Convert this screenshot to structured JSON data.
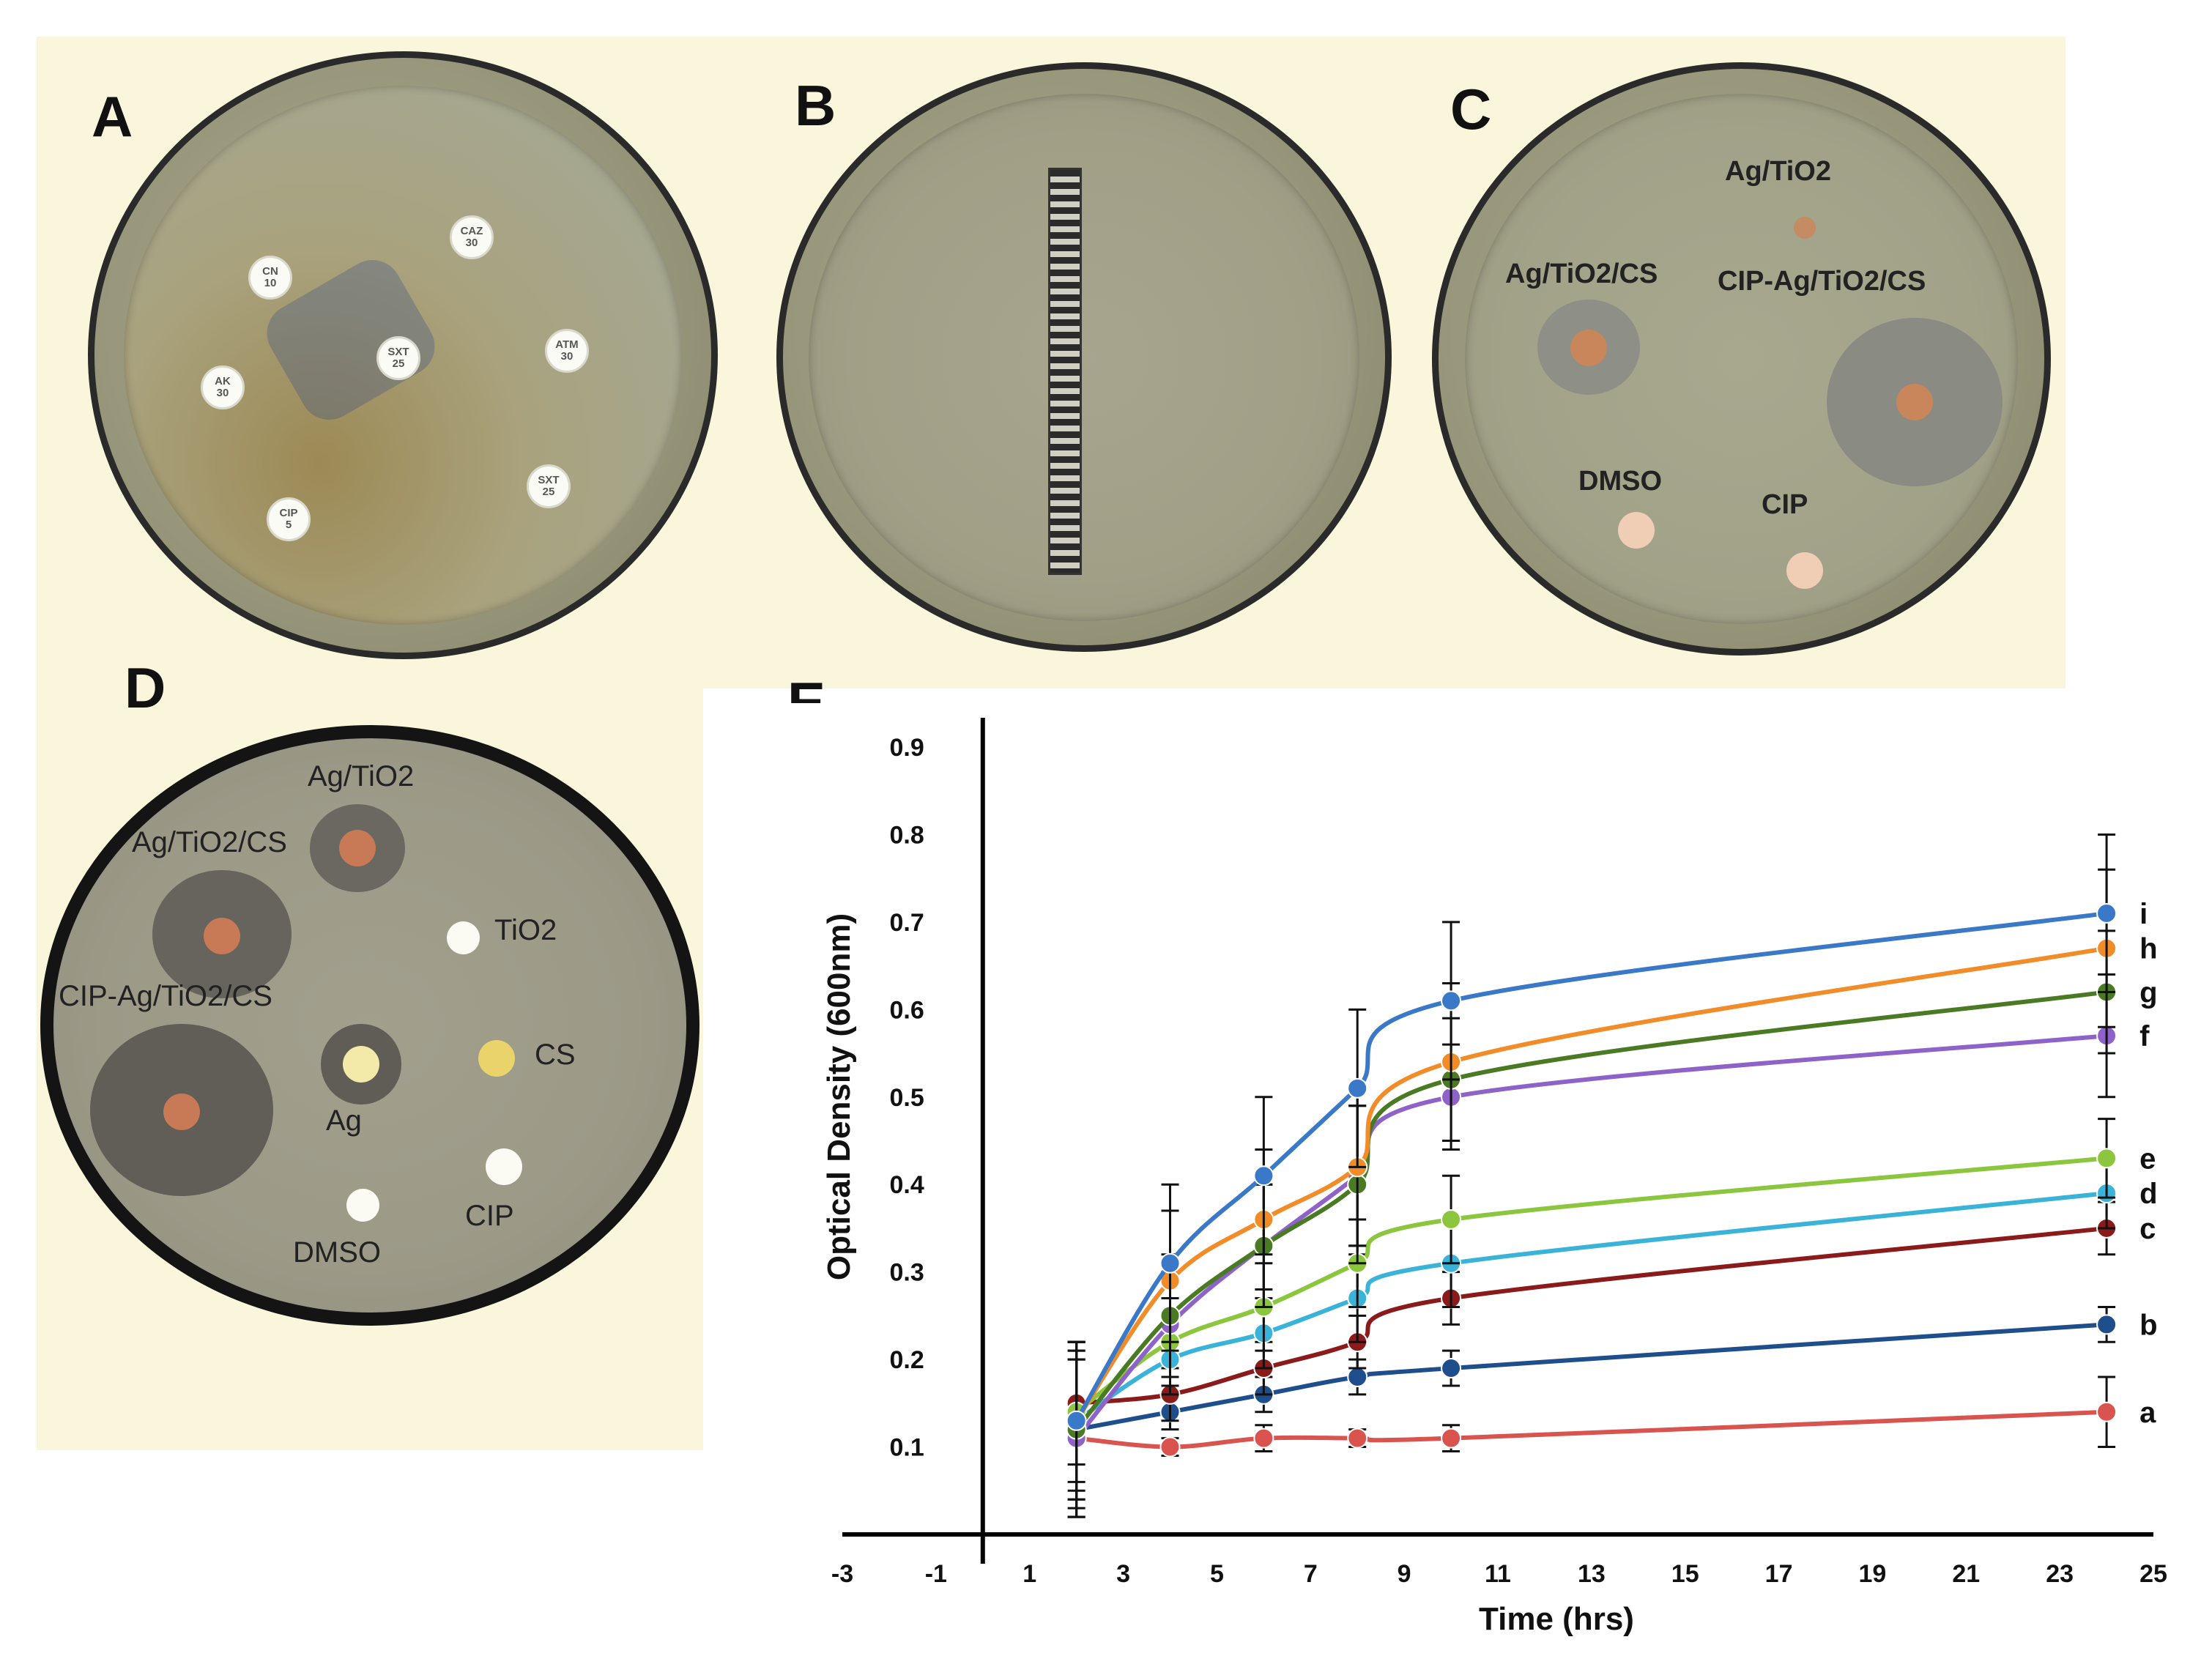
{
  "panels": {
    "A": {
      "letter": "A",
      "discs": [
        {
          "text": "CN\n10"
        },
        {
          "text": "CAZ\n30"
        },
        {
          "text": "AK\n30"
        },
        {
          "text": "SXT\n25"
        },
        {
          "text": "ATM\n30"
        },
        {
          "text": "CIP\n5"
        },
        {
          "text": "SXT\n25"
        }
      ]
    },
    "B": {
      "letter": "B"
    },
    "C": {
      "letter": "C",
      "labels": {
        "ag_tio2": "Ag/TiO2",
        "ag_tio2_cs": "Ag/TiO2/CS",
        "cip_ag_tio2_cs": "CIP-Ag/TiO2/CS",
        "dmso": "DMSO",
        "cip": "CIP"
      }
    },
    "D": {
      "letter": "D",
      "labels": {
        "ag_tio2": "Ag/TiO2",
        "ag_tio2_cs": "Ag/TiO2/CS",
        "tio2": "TiO2",
        "cip_ag_tio2_cs": "CIP-Ag/TiO2/CS",
        "cs": "CS",
        "ag": "Ag",
        "dmso": "DMSO",
        "cip": "CIP"
      }
    }
  },
  "chart_data": {
    "panel_letter": "E",
    "type": "line",
    "title": "",
    "xlabel": "Time (hrs)",
    "ylabel": "Optical Density (600nm)",
    "xlim": [
      -3,
      25
    ],
    "ylim": [
      0,
      0.9
    ],
    "xticks": [
      "-3",
      "-1",
      "1",
      "3",
      "5",
      "7",
      "9",
      "11",
      "13",
      "15",
      "17",
      "19",
      "21",
      "23",
      "25"
    ],
    "yticks": [
      "0.1",
      "0.2",
      "0.3",
      "0.4",
      "0.5",
      "0.6",
      "0.7",
      "0.8",
      "0.9"
    ],
    "x": [
      2,
      4,
      6,
      8,
      10,
      24
    ],
    "series": [
      {
        "name": "a",
        "color": "#d9534f",
        "values": [
          0.11,
          0.1,
          0.11,
          0.11,
          0.11,
          0.14
        ],
        "errors": [
          0.09,
          0.01,
          0.015,
          0.01,
          0.015,
          0.04
        ]
      },
      {
        "name": "b",
        "color": "#1f4e8c",
        "values": [
          0.12,
          0.14,
          0.16,
          0.18,
          0.19,
          0.24
        ],
        "errors": [
          0.1,
          0.02,
          0.02,
          0.02,
          0.02,
          0.02
        ]
      },
      {
        "name": "c",
        "color": "#8b1a1a",
        "values": [
          0.15,
          0.16,
          0.19,
          0.22,
          0.27,
          0.35
        ],
        "errors": [
          0.07,
          0.03,
          0.03,
          0.03,
          0.03,
          0.03
        ]
      },
      {
        "name": "d",
        "color": "#3bb3d9",
        "values": [
          0.13,
          0.2,
          0.23,
          0.27,
          0.31,
          0.39
        ],
        "errors": [
          0.08,
          0.04,
          0.04,
          0.05,
          0.05,
          0.04
        ]
      },
      {
        "name": "e",
        "color": "#8cc63f",
        "values": [
          0.14,
          0.22,
          0.26,
          0.31,
          0.36,
          0.43
        ],
        "errors": [
          0.08,
          0.05,
          0.05,
          0.05,
          0.05,
          0.045
        ]
      },
      {
        "name": "f",
        "color": "#8e62c9",
        "values": [
          0.11,
          0.24,
          0.33,
          0.41,
          0.5,
          0.57
        ],
        "errors": [
          0.09,
          0.06,
          0.07,
          0.08,
          0.06,
          0.07
        ]
      },
      {
        "name": "g",
        "color": "#4a7a24",
        "values": [
          0.12,
          0.25,
          0.33,
          0.4,
          0.52,
          0.62
        ],
        "errors": [
          0.09,
          0.07,
          0.07,
          0.09,
          0.07,
          0.07
        ]
      },
      {
        "name": "h",
        "color": "#f28c28",
        "values": [
          0.13,
          0.29,
          0.36,
          0.42,
          0.54,
          0.67
        ],
        "errors": [
          0.09,
          0.08,
          0.08,
          0.09,
          0.09,
          0.09
        ]
      },
      {
        "name": "i",
        "color": "#3a78c8",
        "values": [
          0.13,
          0.31,
          0.41,
          0.51,
          0.61,
          0.71
        ],
        "errors": [
          0.09,
          0.09,
          0.09,
          0.09,
          0.09,
          0.09
        ]
      }
    ]
  }
}
